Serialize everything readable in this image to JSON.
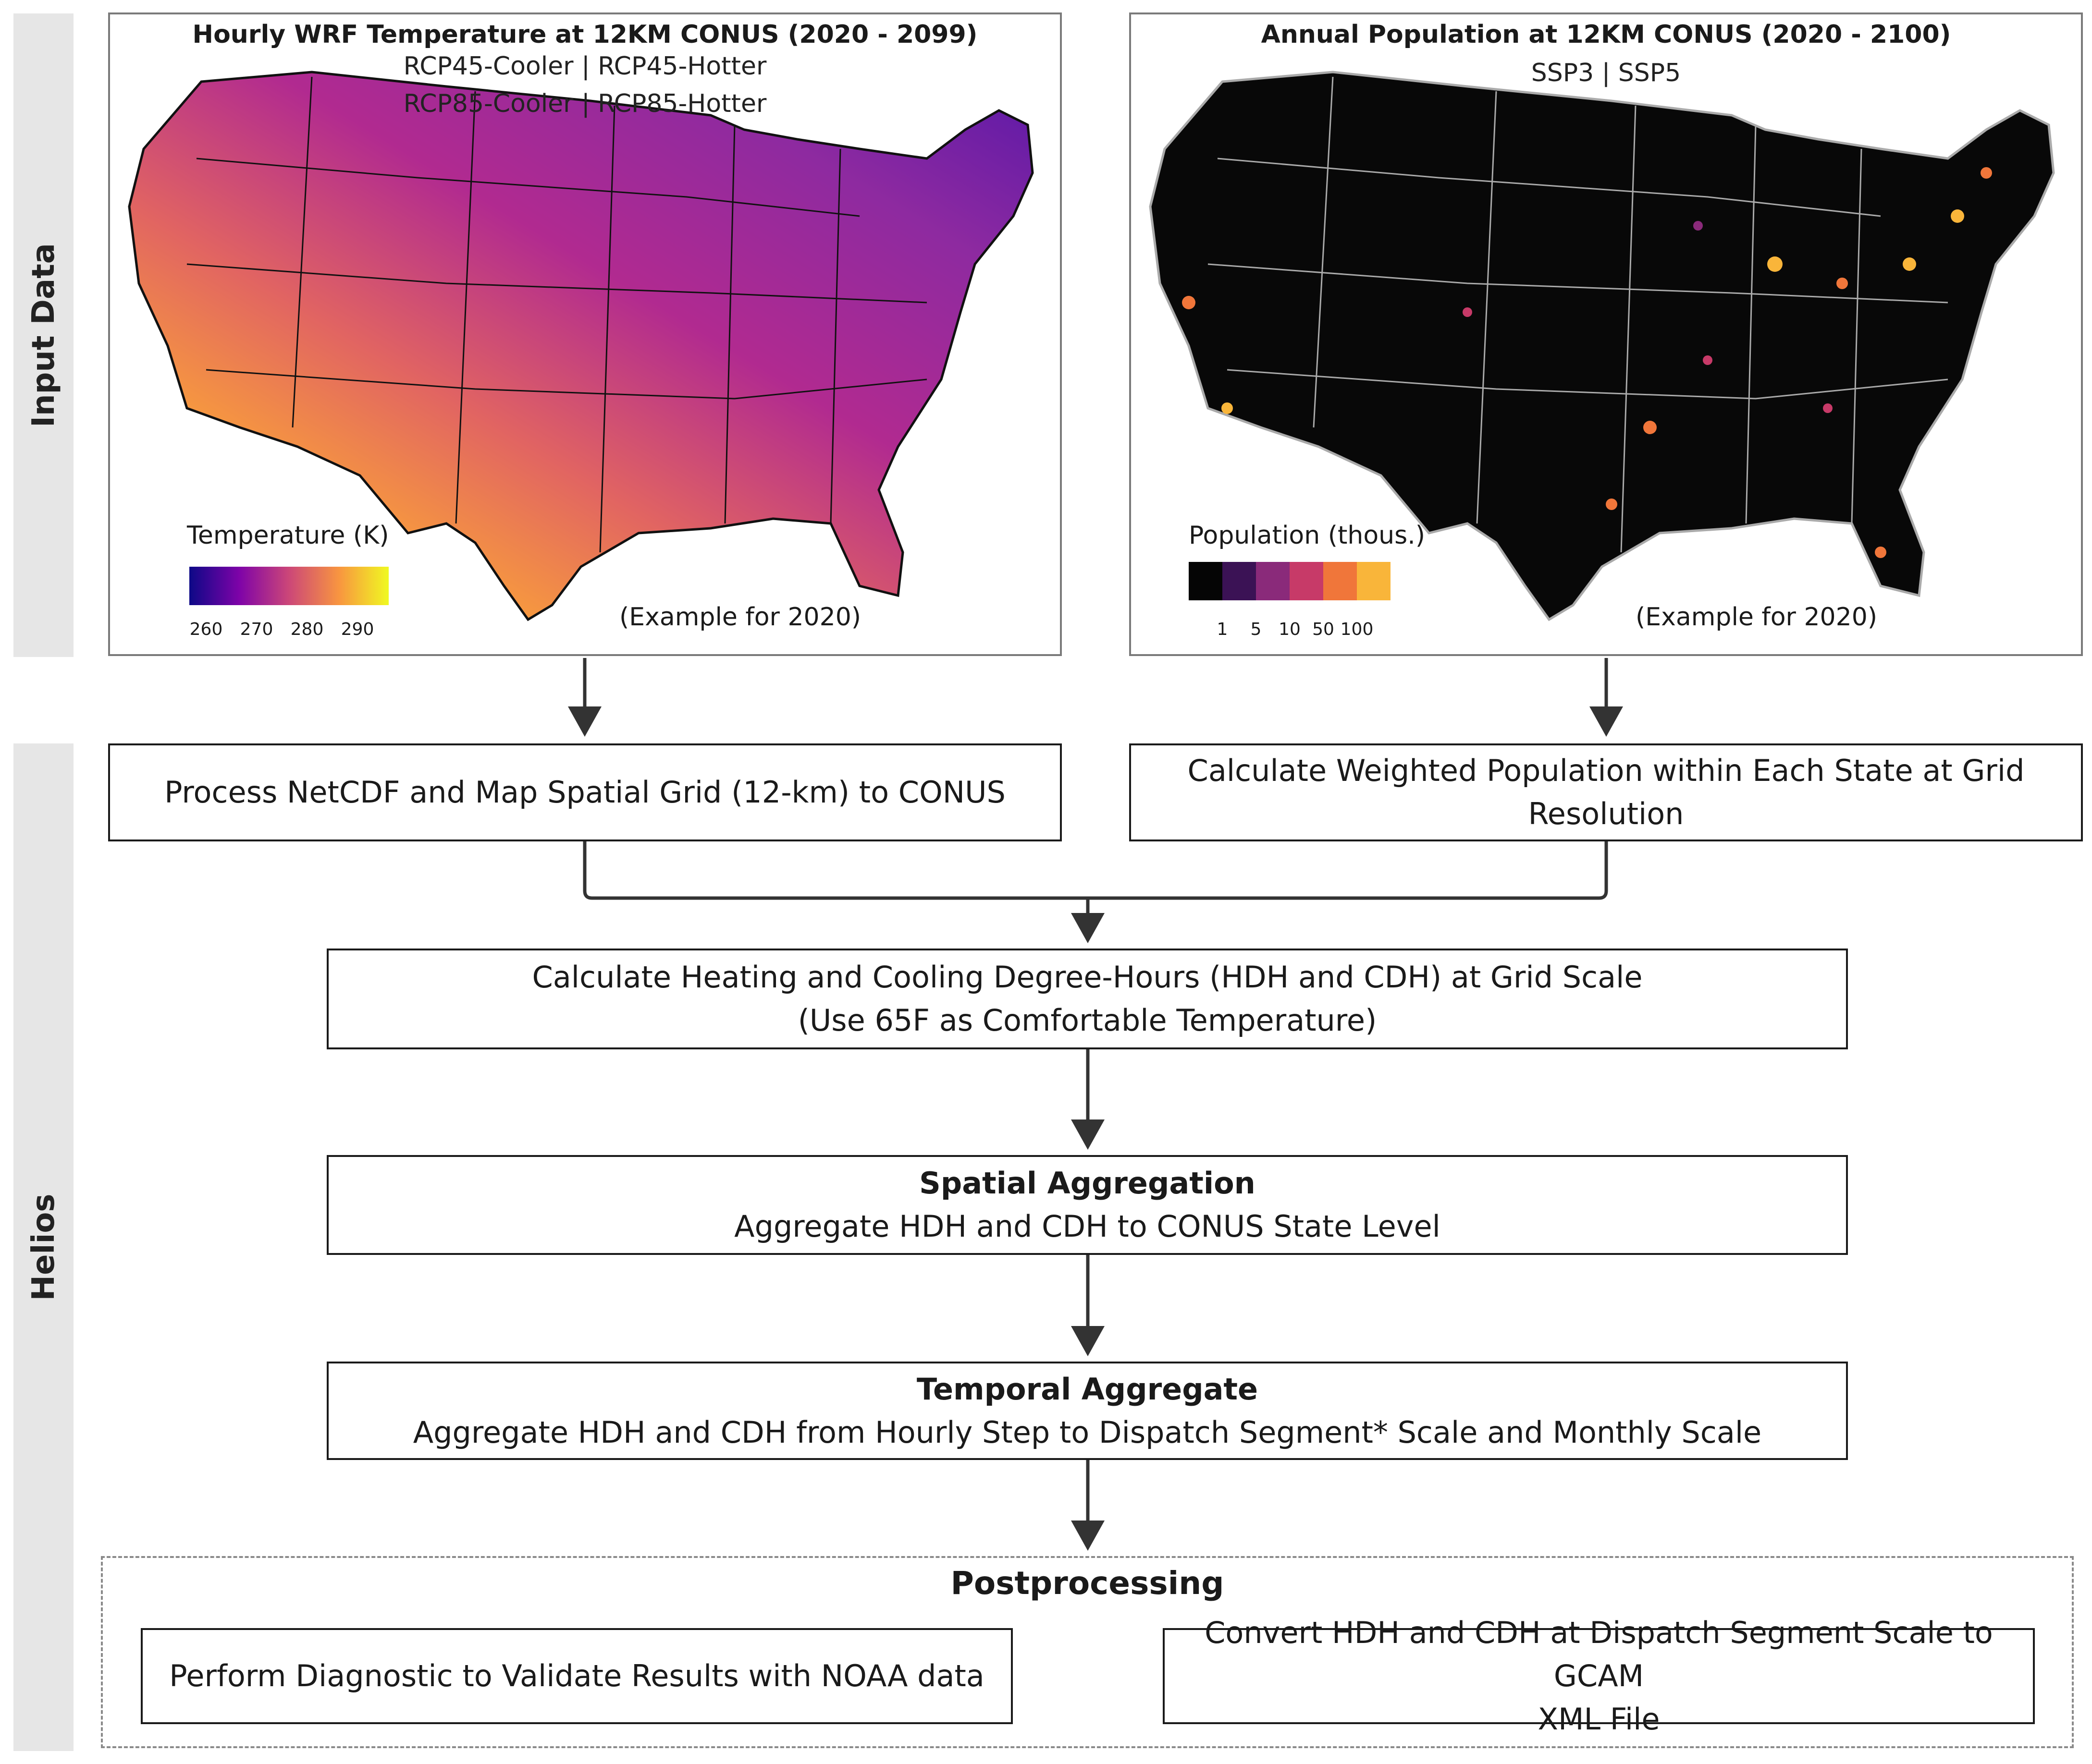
{
  "sections": {
    "input_data": "Input Data",
    "helios": "Helios"
  },
  "temperature_panel": {
    "title": "Hourly WRF Temperature at 12KM CONUS (2020 - 2099)",
    "subtitle_1": "RCP45-Cooler | RCP45-Hotter",
    "subtitle_2": "RCP85-Cooler | RCP85-Hotter",
    "legend_title": "Temperature (K)",
    "legend_ticks": [
      "260",
      "270",
      "280",
      "290"
    ],
    "example_note": "(Example for 2020)",
    "colors": [
      "#0d0887",
      "#6a00a8",
      "#b12a90",
      "#e16462",
      "#fca636",
      "#f0f921"
    ]
  },
  "population_panel": {
    "title": "Annual Population at 12KM CONUS (2020 - 2100)",
    "subtitle": "SSP3 | SSP5",
    "legend_title": "Population (thous.)",
    "legend_ticks": [
      "1",
      "5",
      "10",
      "50",
      "100"
    ],
    "example_note": "(Example for 2020)",
    "colors": [
      "#050505",
      "#3b1255",
      "#8a2a7a",
      "#c73a68",
      "#f0763a",
      "#f9b53a"
    ]
  },
  "steps": {
    "process_netcdf": "Process NetCDF and Map Spatial Grid (12-km) to CONUS",
    "weighted_population_1": "Calculate Weighted Population within Each State at Grid",
    "weighted_population_2": "Resolution",
    "degree_hours_1": "Calculate Heating and Cooling Degree-Hours (HDH and CDH) at Grid Scale",
    "degree_hours_2": "(Use 65F as Comfortable Temperature)",
    "spatial_title": "Spatial Aggregation",
    "spatial_body": "Aggregate HDH and CDH to CONUS State Level",
    "temporal_title": "Temporal Aggregate",
    "temporal_body": "Aggregate HDH and CDH from Hourly Step to Dispatch Segment* Scale and Monthly Scale"
  },
  "postprocessing": {
    "title": "Postprocessing",
    "diagnostic": "Perform Diagnostic to Validate Results with NOAA data",
    "convert_1": "Convert HDH and CDH at Dispatch Segment Scale to GCAM",
    "convert_2": "XML File"
  }
}
